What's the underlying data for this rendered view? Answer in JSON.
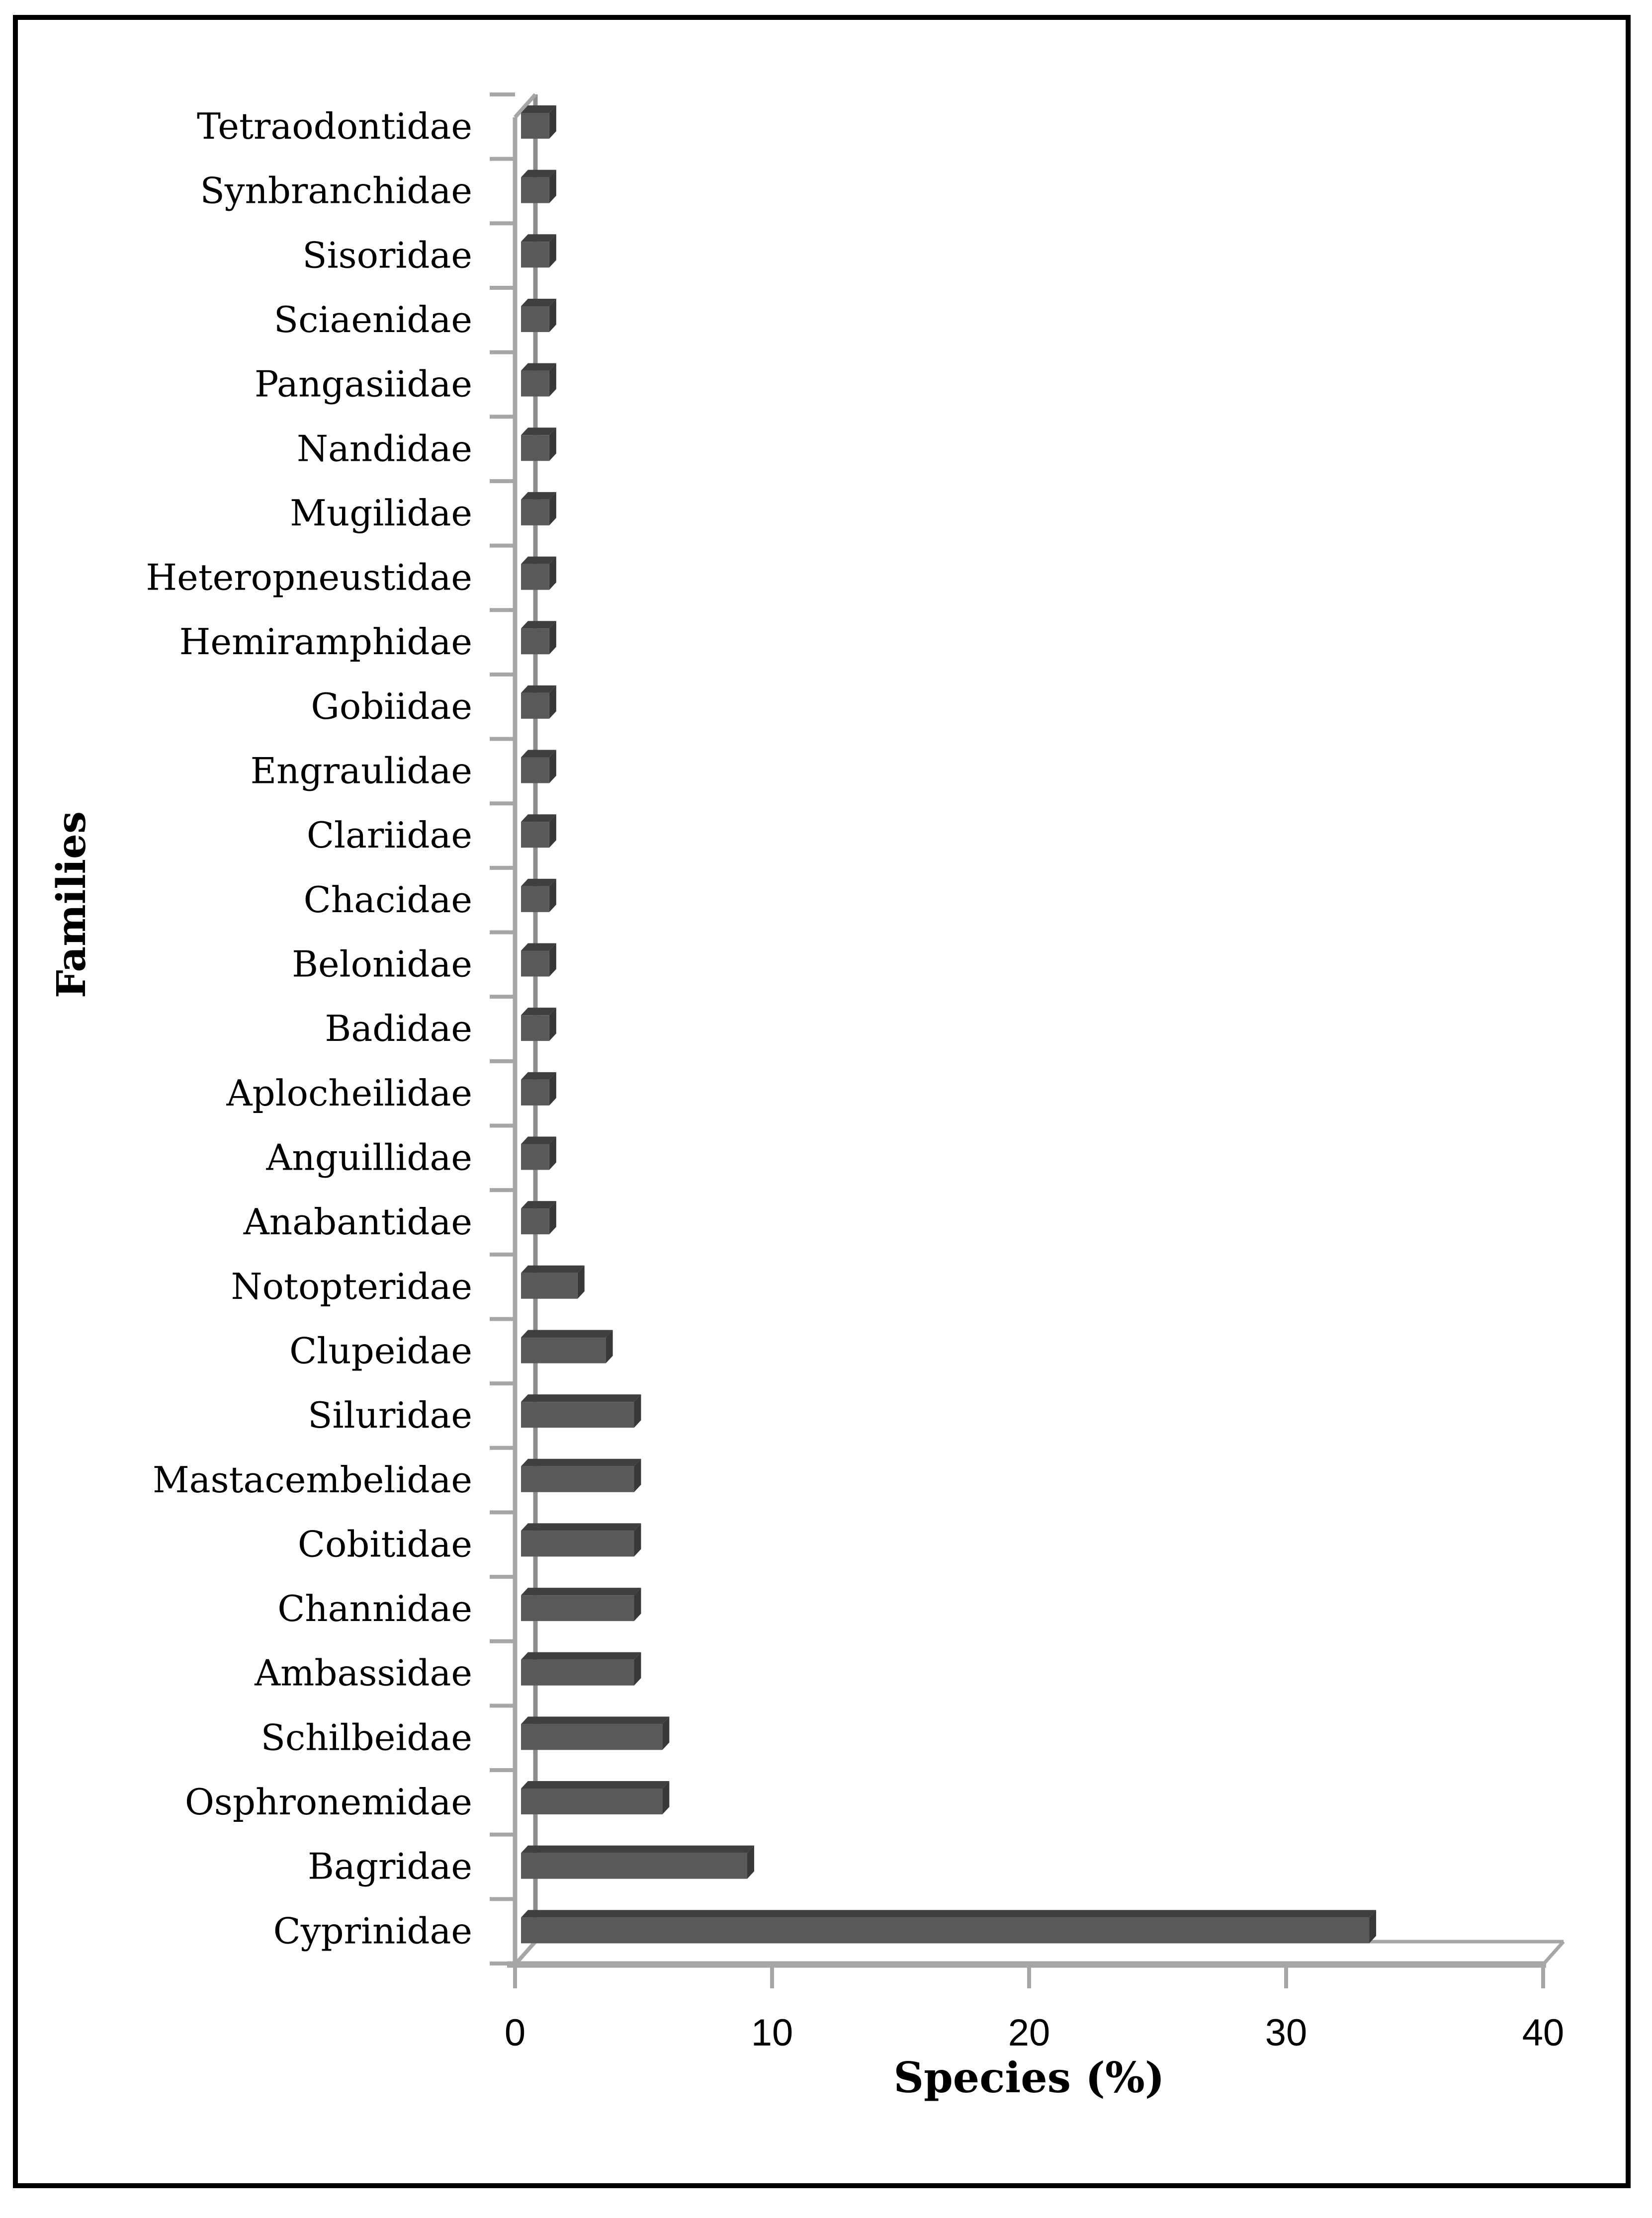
{
  "figure": {
    "background": "#ffffff",
    "frame_color": "#000000"
  },
  "chart_data": {
    "type": "bar",
    "orientation": "horizontal",
    "style": "3d-bar-chart",
    "title": "",
    "xlabel": "Species (%)",
    "ylabel": "Families",
    "xlim": [
      0,
      40
    ],
    "x_ticks": [
      "0",
      "10",
      "20",
      "30",
      "40"
    ],
    "x_tick_values": [
      0,
      10,
      20,
      30,
      40
    ],
    "grid": false,
    "legend": false,
    "categories": [
      "Tetraodontidae",
      "Synbranchidae",
      "Sisoridae",
      "Sciaenidae",
      "Pangasiidae",
      "Nandidae",
      "Mugilidae",
      "Heteropneustidae",
      "Hemiramphidae",
      "Gobiidae",
      "Engraulidae",
      "Clariidae",
      "Chacidae",
      "Belonidae",
      "Badidae",
      "Aplocheilidae",
      "Anguillidae",
      "Anabantidae",
      "Notopteridae",
      "Clupeidae",
      "Siluridae",
      "Mastacembelidae",
      "Cobitidae",
      "Channidae",
      "Ambassidae",
      "Schilbeidae",
      "Osphronemidae",
      "Bagridae",
      "Cyprinidae"
    ],
    "series": [
      {
        "name": "Species (%)",
        "values": [
          1.1,
          1.1,
          1.1,
          1.1,
          1.1,
          1.1,
          1.1,
          1.1,
          1.1,
          1.1,
          1.1,
          1.1,
          1.1,
          1.1,
          1.1,
          1.1,
          1.1,
          1.1,
          2.2,
          3.3,
          4.4,
          4.4,
          4.4,
          4.4,
          4.4,
          5.5,
          5.5,
          8.8,
          33.0
        ]
      }
    ],
    "colors": {
      "bar_front": "#595959",
      "bar_top": "#3f3f3f",
      "bar_side": "#383838",
      "axis_line": "#a6a6a6",
      "axis_back_line": "#8c8c8c",
      "text": "#000000"
    }
  }
}
